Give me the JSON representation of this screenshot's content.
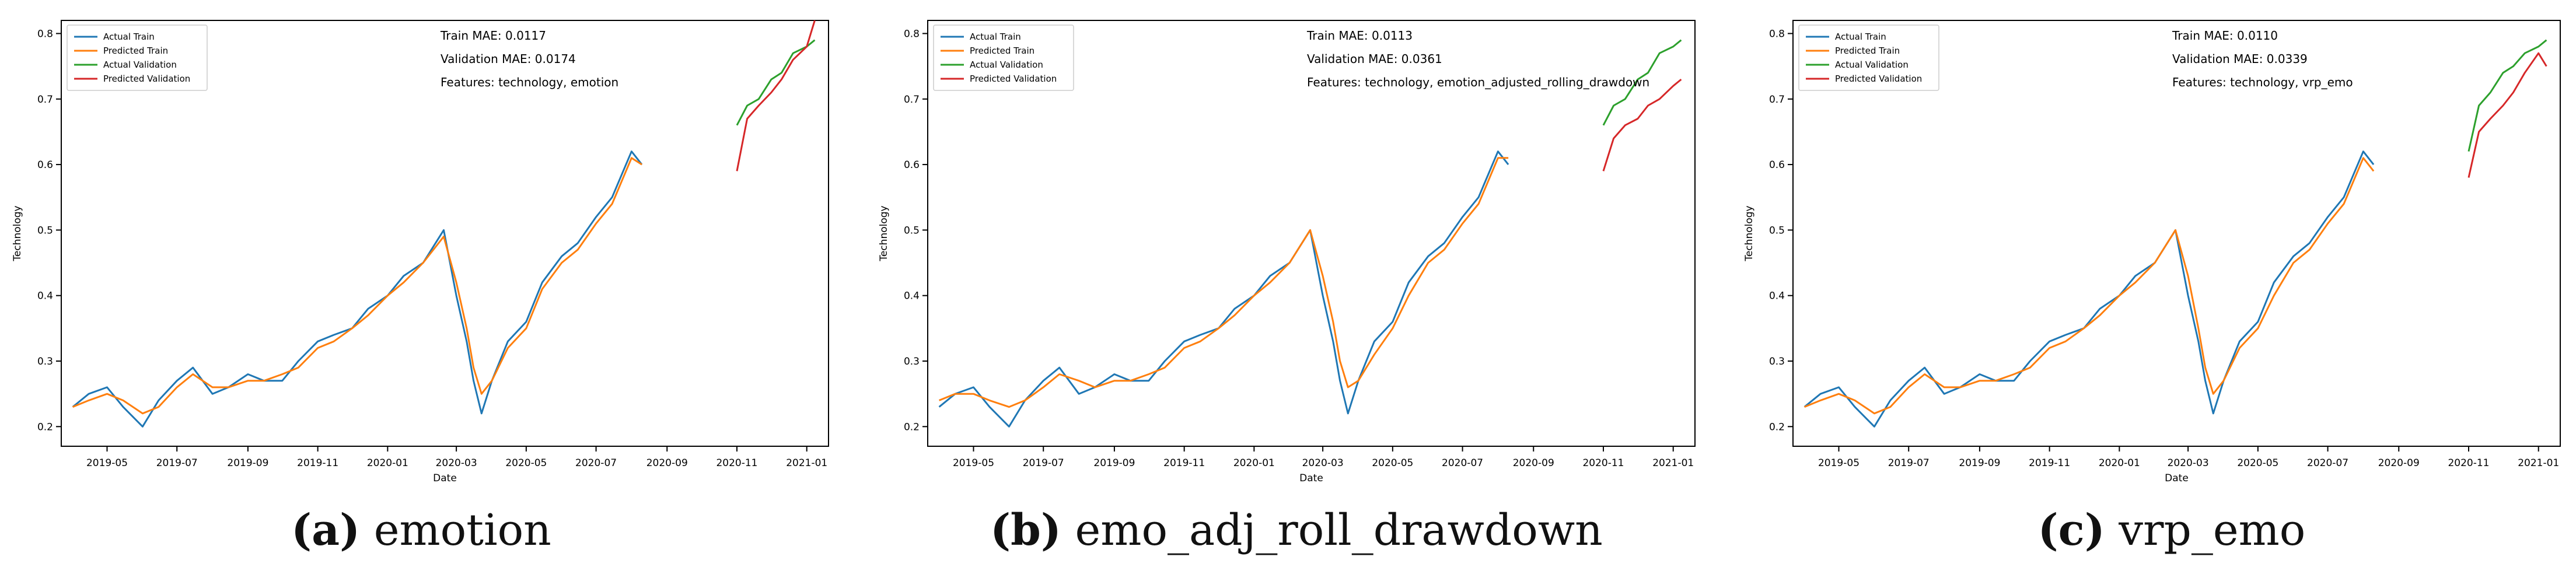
{
  "legend_labels": [
    "Actual Train",
    "Predicted Train",
    "Actual Validation",
    "Predicted Validation"
  ],
  "colors": {
    "actual_train": "#1f77b4",
    "predicted_train": "#ff7f0e",
    "actual_validation": "#2ca02c",
    "predicted_validation": "#d62728"
  },
  "axis": {
    "xlabel": "Date",
    "ylabel": "Technology",
    "x_ticks": [
      "2019-05",
      "2019-07",
      "2019-09",
      "2019-11",
      "2020-01",
      "2020-03",
      "2020-05",
      "2020-07",
      "2020-09",
      "2020-11",
      "2021-01"
    ],
    "y_ticks": [
      "0.2",
      "0.3",
      "0.4",
      "0.5",
      "0.6",
      "0.7",
      "0.8"
    ]
  },
  "panels": [
    {
      "tag": "(a)",
      "name": "emotion",
      "train_mae": "Train MAE: 0.0117",
      "val_mae": "Validation MAE: 0.0174",
      "features": "Features: technology, emotion"
    },
    {
      "tag": "(b)",
      "name": "emo_adj_roll_drawdown",
      "train_mae": "Train MAE: 0.0113",
      "val_mae": "Validation MAE: 0.0361",
      "features": "Features: technology, emotion_adjusted_rolling_drawdown"
    },
    {
      "tag": "(c)",
      "name": "vrp_emo",
      "train_mae": "Train MAE: 0.0110",
      "val_mae": "Validation MAE: 0.0339",
      "features": "Features: technology, vrp_emo"
    }
  ],
  "chart_data": [
    {
      "type": "line",
      "xlabel": "Date",
      "ylabel": "Technology",
      "xlim": [
        "2019-03-22",
        "2021-01-20"
      ],
      "ylim": [
        0.17,
        0.82
      ],
      "series": [
        {
          "name": "Actual Train",
          "x": [
            "2019-04-01",
            "2019-04-15",
            "2019-05-01",
            "2019-05-15",
            "2019-06-01",
            "2019-06-15",
            "2019-07-01",
            "2019-07-15",
            "2019-08-01",
            "2019-08-15",
            "2019-09-01",
            "2019-09-15",
            "2019-10-01",
            "2019-10-15",
            "2019-11-01",
            "2019-11-15",
            "2019-12-01",
            "2019-12-15",
            "2020-01-01",
            "2020-01-15",
            "2020-02-01",
            "2020-02-19",
            "2020-03-01",
            "2020-03-10",
            "2020-03-16",
            "2020-03-23",
            "2020-04-01",
            "2020-04-15",
            "2020-05-01",
            "2020-05-15",
            "2020-06-01",
            "2020-06-15",
            "2020-07-01",
            "2020-07-15",
            "2020-08-01",
            "2020-08-10"
          ],
          "values": [
            0.23,
            0.25,
            0.26,
            0.23,
            0.2,
            0.24,
            0.27,
            0.29,
            0.25,
            0.26,
            0.28,
            0.27,
            0.27,
            0.3,
            0.33,
            0.34,
            0.35,
            0.38,
            0.4,
            0.43,
            0.45,
            0.5,
            0.4,
            0.33,
            0.27,
            0.22,
            0.27,
            0.33,
            0.36,
            0.42,
            0.46,
            0.48,
            0.52,
            0.55,
            0.62,
            0.6
          ]
        },
        {
          "name": "Predicted Train",
          "x": [
            "2019-04-01",
            "2019-04-15",
            "2019-05-01",
            "2019-05-15",
            "2019-06-01",
            "2019-06-15",
            "2019-07-01",
            "2019-07-15",
            "2019-08-01",
            "2019-08-15",
            "2019-09-01",
            "2019-09-15",
            "2019-10-01",
            "2019-10-15",
            "2019-11-01",
            "2019-11-15",
            "2019-12-01",
            "2019-12-15",
            "2020-01-01",
            "2020-01-15",
            "2020-02-01",
            "2020-02-19",
            "2020-03-01",
            "2020-03-10",
            "2020-03-16",
            "2020-03-23",
            "2020-04-01",
            "2020-04-15",
            "2020-05-01",
            "2020-05-15",
            "2020-06-01",
            "2020-06-15",
            "2020-07-01",
            "2020-07-15",
            "2020-08-01",
            "2020-08-10"
          ],
          "values": [
            0.23,
            0.24,
            0.25,
            0.24,
            0.22,
            0.23,
            0.26,
            0.28,
            0.26,
            0.26,
            0.27,
            0.27,
            0.28,
            0.29,
            0.32,
            0.33,
            0.35,
            0.37,
            0.4,
            0.42,
            0.45,
            0.49,
            0.42,
            0.35,
            0.29,
            0.25,
            0.27,
            0.32,
            0.35,
            0.41,
            0.45,
            0.47,
            0.51,
            0.54,
            0.61,
            0.6
          ]
        },
        {
          "name": "Actual Validation",
          "x": [
            "2020-11-01",
            "2020-11-10",
            "2020-11-20",
            "2020-12-01",
            "2020-12-10",
            "2020-12-20",
            "2021-01-01",
            "2021-01-08"
          ],
          "values": [
            0.66,
            0.69,
            0.7,
            0.73,
            0.74,
            0.77,
            0.78,
            0.79
          ]
        },
        {
          "name": "Predicted Validation",
          "x": [
            "2020-11-01",
            "2020-11-10",
            "2020-11-20",
            "2020-12-01",
            "2020-12-10",
            "2020-12-20",
            "2021-01-01",
            "2021-01-08"
          ],
          "values": [
            0.59,
            0.67,
            0.69,
            0.71,
            0.73,
            0.76,
            0.78,
            0.82
          ]
        }
      ]
    },
    {
      "type": "line",
      "xlabel": "Date",
      "ylabel": "Technology",
      "xlim": [
        "2019-03-22",
        "2021-01-20"
      ],
      "ylim": [
        0.17,
        0.82
      ],
      "series": [
        {
          "name": "Actual Train",
          "x": [
            "2019-04-01",
            "2019-04-15",
            "2019-05-01",
            "2019-05-15",
            "2019-06-01",
            "2019-06-15",
            "2019-07-01",
            "2019-07-15",
            "2019-08-01",
            "2019-08-15",
            "2019-09-01",
            "2019-09-15",
            "2019-10-01",
            "2019-10-15",
            "2019-11-01",
            "2019-11-15",
            "2019-12-01",
            "2019-12-15",
            "2020-01-01",
            "2020-01-15",
            "2020-02-01",
            "2020-02-19",
            "2020-03-01",
            "2020-03-10",
            "2020-03-16",
            "2020-03-23",
            "2020-04-01",
            "2020-04-15",
            "2020-05-01",
            "2020-05-15",
            "2020-06-01",
            "2020-06-15",
            "2020-07-01",
            "2020-07-15",
            "2020-08-01",
            "2020-08-10"
          ],
          "values": [
            0.23,
            0.25,
            0.26,
            0.23,
            0.2,
            0.24,
            0.27,
            0.29,
            0.25,
            0.26,
            0.28,
            0.27,
            0.27,
            0.3,
            0.33,
            0.34,
            0.35,
            0.38,
            0.4,
            0.43,
            0.45,
            0.5,
            0.4,
            0.33,
            0.27,
            0.22,
            0.27,
            0.33,
            0.36,
            0.42,
            0.46,
            0.48,
            0.52,
            0.55,
            0.62,
            0.6
          ]
        },
        {
          "name": "Predicted Train",
          "x": [
            "2019-04-01",
            "2019-04-15",
            "2019-05-01",
            "2019-05-15",
            "2019-06-01",
            "2019-06-15",
            "2019-07-01",
            "2019-07-15",
            "2019-08-01",
            "2019-08-15",
            "2019-09-01",
            "2019-09-15",
            "2019-10-01",
            "2019-10-15",
            "2019-11-01",
            "2019-11-15",
            "2019-12-01",
            "2019-12-15",
            "2020-01-01",
            "2020-01-15",
            "2020-02-01",
            "2020-02-19",
            "2020-03-01",
            "2020-03-10",
            "2020-03-16",
            "2020-03-23",
            "2020-04-01",
            "2020-04-15",
            "2020-05-01",
            "2020-05-15",
            "2020-06-01",
            "2020-06-15",
            "2020-07-01",
            "2020-07-15",
            "2020-08-01",
            "2020-08-10"
          ],
          "values": [
            0.24,
            0.25,
            0.25,
            0.24,
            0.23,
            0.24,
            0.26,
            0.28,
            0.27,
            0.26,
            0.27,
            0.27,
            0.28,
            0.29,
            0.32,
            0.33,
            0.35,
            0.37,
            0.4,
            0.42,
            0.45,
            0.5,
            0.43,
            0.36,
            0.3,
            0.26,
            0.27,
            0.31,
            0.35,
            0.4,
            0.45,
            0.47,
            0.51,
            0.54,
            0.61,
            0.61
          ]
        },
        {
          "name": "Actual Validation",
          "x": [
            "2020-11-01",
            "2020-11-10",
            "2020-11-20",
            "2020-12-01",
            "2020-12-10",
            "2020-12-20",
            "2021-01-01",
            "2021-01-08"
          ],
          "values": [
            0.66,
            0.69,
            0.7,
            0.73,
            0.74,
            0.77,
            0.78,
            0.79
          ]
        },
        {
          "name": "Predicted Validation",
          "x": [
            "2020-11-01",
            "2020-11-10",
            "2020-11-20",
            "2020-12-01",
            "2020-12-10",
            "2020-12-20",
            "2021-01-01",
            "2021-01-08"
          ],
          "values": [
            0.59,
            0.64,
            0.66,
            0.67,
            0.69,
            0.7,
            0.72,
            0.73
          ]
        }
      ]
    },
    {
      "type": "line",
      "xlabel": "Date",
      "ylabel": "Technology",
      "xlim": [
        "2019-03-22",
        "2021-01-20"
      ],
      "ylim": [
        0.17,
        0.82
      ],
      "series": [
        {
          "name": "Actual Train",
          "x": [
            "2019-04-01",
            "2019-04-15",
            "2019-05-01",
            "2019-05-15",
            "2019-06-01",
            "2019-06-15",
            "2019-07-01",
            "2019-07-15",
            "2019-08-01",
            "2019-08-15",
            "2019-09-01",
            "2019-09-15",
            "2019-10-01",
            "2019-10-15",
            "2019-11-01",
            "2019-11-15",
            "2019-12-01",
            "2019-12-15",
            "2020-01-01",
            "2020-01-15",
            "2020-02-01",
            "2020-02-19",
            "2020-03-01",
            "2020-03-10",
            "2020-03-16",
            "2020-03-23",
            "2020-04-01",
            "2020-04-15",
            "2020-05-01",
            "2020-05-15",
            "2020-06-01",
            "2020-06-15",
            "2020-07-01",
            "2020-07-15",
            "2020-08-01",
            "2020-08-10"
          ],
          "values": [
            0.23,
            0.25,
            0.26,
            0.23,
            0.2,
            0.24,
            0.27,
            0.29,
            0.25,
            0.26,
            0.28,
            0.27,
            0.27,
            0.3,
            0.33,
            0.34,
            0.35,
            0.38,
            0.4,
            0.43,
            0.45,
            0.5,
            0.4,
            0.33,
            0.27,
            0.22,
            0.27,
            0.33,
            0.36,
            0.42,
            0.46,
            0.48,
            0.52,
            0.55,
            0.62,
            0.6
          ]
        },
        {
          "name": "Predicted Train",
          "x": [
            "2019-04-01",
            "2019-04-15",
            "2019-05-01",
            "2019-05-15",
            "2019-06-01",
            "2019-06-15",
            "2019-07-01",
            "2019-07-15",
            "2019-08-01",
            "2019-08-15",
            "2019-09-01",
            "2019-09-15",
            "2019-10-01",
            "2019-10-15",
            "2019-11-01",
            "2019-11-15",
            "2019-12-01",
            "2019-12-15",
            "2020-01-01",
            "2020-01-15",
            "2020-02-01",
            "2020-02-19",
            "2020-03-01",
            "2020-03-10",
            "2020-03-16",
            "2020-03-23",
            "2020-04-01",
            "2020-04-15",
            "2020-05-01",
            "2020-05-15",
            "2020-06-01",
            "2020-06-15",
            "2020-07-01",
            "2020-07-15",
            "2020-08-01",
            "2020-08-10"
          ],
          "values": [
            0.23,
            0.24,
            0.25,
            0.24,
            0.22,
            0.23,
            0.26,
            0.28,
            0.26,
            0.26,
            0.27,
            0.27,
            0.28,
            0.29,
            0.32,
            0.33,
            0.35,
            0.37,
            0.4,
            0.42,
            0.45,
            0.5,
            0.43,
            0.35,
            0.29,
            0.25,
            0.27,
            0.32,
            0.35,
            0.4,
            0.45,
            0.47,
            0.51,
            0.54,
            0.61,
            0.59
          ]
        },
        {
          "name": "Actual Validation",
          "x": [
            "2020-11-01",
            "2020-11-10",
            "2020-11-20",
            "2020-12-01",
            "2020-12-10",
            "2020-12-20",
            "2021-01-01",
            "2021-01-08"
          ],
          "values": [
            0.62,
            0.69,
            0.71,
            0.74,
            0.75,
            0.77,
            0.78,
            0.79
          ]
        },
        {
          "name": "Predicted Validation",
          "x": [
            "2020-11-01",
            "2020-11-10",
            "2020-11-20",
            "2020-12-01",
            "2020-12-10",
            "2020-12-20",
            "2021-01-01",
            "2021-01-08"
          ],
          "values": [
            0.58,
            0.65,
            0.67,
            0.69,
            0.71,
            0.74,
            0.77,
            0.75
          ]
        }
      ]
    }
  ]
}
